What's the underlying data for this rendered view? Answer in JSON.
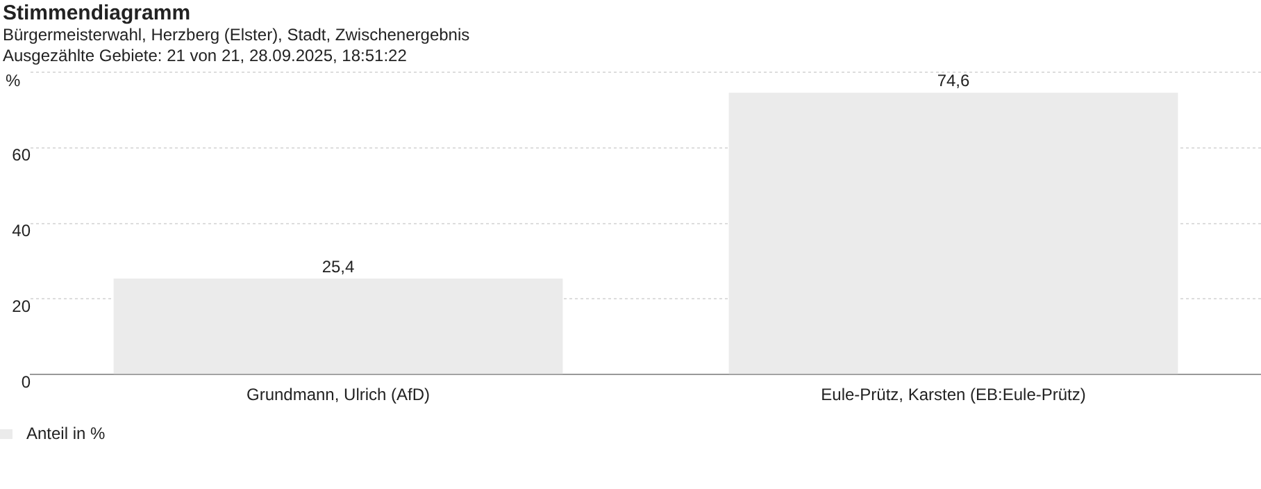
{
  "chart_data": {
    "type": "bar",
    "title": "Stimmendiagramm",
    "subtitle": "Bürgermeisterwahl, Herzberg (Elster), Stadt, Zwischenergebnis",
    "annotations": [
      "Ausgezählte Gebiete: 21 von 21, 28.09.2025, 18:51:22"
    ],
    "ylabel": "%",
    "categories": [
      "Grundmann, Ulrich (AfD)",
      "Eule-Prütz, Karsten (EB:Eule-Prütz)"
    ],
    "series": [
      {
        "name": "Anteil in %",
        "color": "#ebebeb",
        "values": [
          25.4,
          74.6
        ],
        "value_labels": [
          "25,4",
          "74,6"
        ]
      }
    ],
    "ylim": [
      0,
      80
    ],
    "yticks": [
      0,
      20,
      40,
      60,
      {
        "value": 80,
        "label": null
      }
    ],
    "grid": "y",
    "legend": "bottom left"
  }
}
